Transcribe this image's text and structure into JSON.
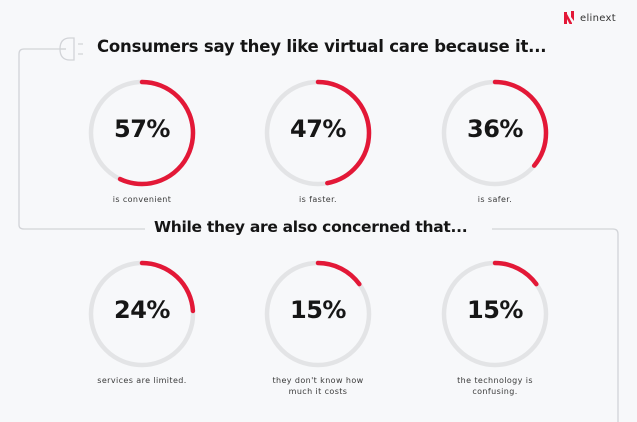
{
  "brand": {
    "name": "elinext",
    "accent_color": "#e31837"
  },
  "section_1": {
    "title": "Consumers say they like virtual care because it...",
    "stats": [
      {
        "value": "57%",
        "percent": 57,
        "label": "is convenient"
      },
      {
        "value": "47%",
        "percent": 47,
        "label": "is faster."
      },
      {
        "value": "36%",
        "percent": 36,
        "label": "is safer."
      }
    ]
  },
  "section_2": {
    "title": "While they are also concerned that...",
    "stats": [
      {
        "value": "24%",
        "percent": 24,
        "label": "services are limited."
      },
      {
        "value": "15%",
        "percent": 15,
        "label": "they don't know how much it costs"
      },
      {
        "value": "15%",
        "percent": 15,
        "label": "the technology is confusing."
      }
    ]
  },
  "colors": {
    "ring_track": "#e3e4e6",
    "ring_fill": "#e31837",
    "line": "#d2d4d8",
    "background": "#f7f8fa"
  },
  "chart_data": [
    {
      "type": "pie",
      "title": "Consumers say they like virtual care because it...",
      "categories": [
        "is convenient",
        "is faster.",
        "is safer."
      ],
      "values": [
        57,
        47,
        36
      ],
      "unit": "%"
    },
    {
      "type": "pie",
      "title": "While they are also concerned that...",
      "categories": [
        "services are limited.",
        "they don't know how much it costs",
        "the technology is confusing."
      ],
      "values": [
        24,
        15,
        15
      ],
      "unit": "%"
    }
  ]
}
